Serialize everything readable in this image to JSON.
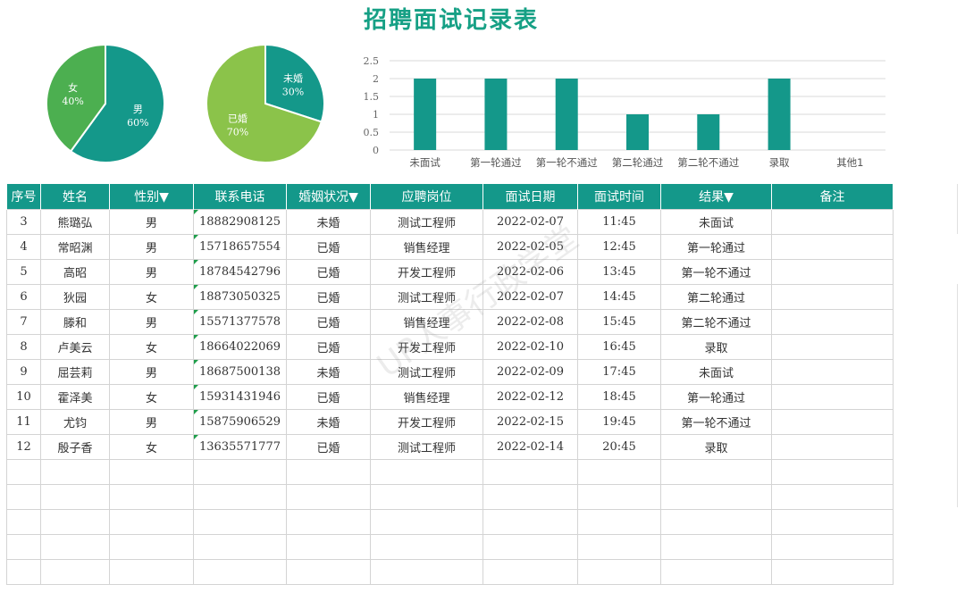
{
  "title": "招聘面试记录表",
  "watermark": "UP人事行政学堂",
  "colors": {
    "teal": "#14988a",
    "green": "#8bc34a",
    "green_dark": "#4caf50"
  },
  "chart_data": [
    {
      "type": "pie",
      "slices": [
        {
          "label": "男",
          "percent_label": "60%",
          "value": 60,
          "color": "#14988a"
        },
        {
          "label": "女",
          "percent_label": "40%",
          "value": 40,
          "color": "#4caf50"
        }
      ],
      "start": "top",
      "direction": "clockwise"
    },
    {
      "type": "pie",
      "slices": [
        {
          "label": "未婚",
          "percent_label": "30%",
          "value": 30,
          "color": "#14988a"
        },
        {
          "label": "已婚",
          "percent_label": "70%",
          "value": 70,
          "color": "#8bc34a"
        }
      ],
      "start": "top",
      "direction": "clockwise"
    },
    {
      "type": "bar",
      "categories": [
        "未面试",
        "第一轮通过",
        "第一轮不通过",
        "第二轮通过",
        "第二轮不通过",
        "录取",
        "其他1"
      ],
      "values": [
        2,
        2,
        2,
        1,
        1,
        2,
        0
      ],
      "yticks": [
        "0",
        "0.5",
        "1",
        "1.5",
        "2",
        "2.5"
      ],
      "ylim": [
        0,
        2.5
      ],
      "grid": true,
      "color": "#14988a"
    }
  ],
  "table": {
    "headers": [
      "序号",
      "姓名",
      "性别▼",
      "联系电话",
      "婚姻状况▼",
      "应聘岗位",
      "面试日期",
      "面试时间",
      "结果▼",
      "备注"
    ],
    "rows": [
      [
        "3",
        "熊璐弘",
        "男",
        "18882908125",
        "未婚",
        "测试工程师",
        "2022-02-07",
        "11:45",
        "未面试",
        ""
      ],
      [
        "4",
        "常昭渊",
        "男",
        "15718657554",
        "已婚",
        "销售经理",
        "2022-02-05",
        "12:45",
        "第一轮通过",
        ""
      ],
      [
        "5",
        "高昭",
        "男",
        "18784542796",
        "已婚",
        "开发工程师",
        "2022-02-06",
        "13:45",
        "第一轮不通过",
        ""
      ],
      [
        "6",
        "狄园",
        "女",
        "18873050325",
        "已婚",
        "测试工程师",
        "2022-02-07",
        "14:45",
        "第二轮通过",
        ""
      ],
      [
        "7",
        "滕和",
        "男",
        "15571377578",
        "已婚",
        "销售经理",
        "2022-02-08",
        "15:45",
        "第二轮不通过",
        ""
      ],
      [
        "8",
        "卢美云",
        "女",
        "18664022069",
        "已婚",
        "开发工程师",
        "2022-02-10",
        "16:45",
        "录取",
        ""
      ],
      [
        "9",
        "屈芸莉",
        "男",
        "18687500138",
        "未婚",
        "测试工程师",
        "2022-02-09",
        "17:45",
        "未面试",
        ""
      ],
      [
        "10",
        "霍泽美",
        "女",
        "15931431946",
        "已婚",
        "销售经理",
        "2022-02-12",
        "18:45",
        "第一轮通过",
        ""
      ],
      [
        "11",
        "尤钧",
        "男",
        "15875906529",
        "未婚",
        "开发工程师",
        "2022-02-15",
        "19:45",
        "第一轮不通过",
        ""
      ],
      [
        "12",
        "殷子香",
        "女",
        "13635571777",
        "已婚",
        "测试工程师",
        "2022-02-14",
        "20:45",
        "录取",
        ""
      ],
      [
        "",
        "",
        "",
        "",
        "",
        "",
        "",
        "",
        "",
        ""
      ],
      [
        "",
        "",
        "",
        "",
        "",
        "",
        "",
        "",
        "",
        ""
      ],
      [
        "",
        "",
        "",
        "",
        "",
        "",
        "",
        "",
        "",
        ""
      ],
      [
        "",
        "",
        "",
        "",
        "",
        "",
        "",
        "",
        "",
        ""
      ],
      [
        "",
        "",
        "",
        "",
        "",
        "",
        "",
        "",
        "",
        ""
      ]
    ]
  }
}
